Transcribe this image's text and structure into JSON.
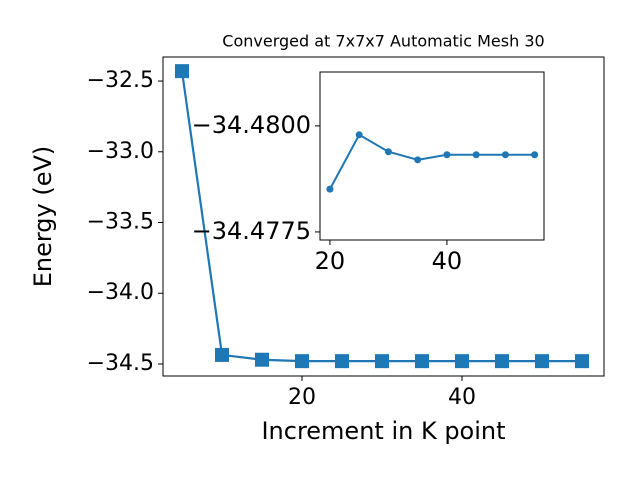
{
  "chart_data": [
    {
      "type": "line",
      "title": "Converged at 7x7x7 Automatic Mesh 30",
      "xlabel": "Increment in K point",
      "ylabel": "Energy (eV)",
      "x": [
        5,
        10,
        15,
        20,
        25,
        30,
        35,
        40,
        45,
        50,
        55
      ],
      "series": [
        {
          "color": "#1f77b4",
          "marker": "square",
          "values": [
            -32.43,
            -34.436,
            -34.47,
            -34.48,
            -34.48,
            -34.48,
            -34.48,
            -34.48,
            -34.48,
            -34.48,
            -34.48
          ]
        }
      ],
      "xlim": [
        2.625,
        57.75
      ],
      "ylim": [
        -34.585,
        -32.33
      ],
      "xticks": [
        20,
        40
      ],
      "yticks": [
        {
          "value": -32.5,
          "label": "−32.5"
        },
        {
          "value": -33.0,
          "label": "−33.0"
        },
        {
          "value": -33.5,
          "label": "−33.5"
        },
        {
          "value": -34.0,
          "label": "−34.0"
        },
        {
          "value": -34.5,
          "label": "−34.5"
        }
      ]
    },
    {
      "type": "line",
      "x": [
        20,
        25,
        30,
        35,
        40,
        45,
        50,
        55
      ],
      "series": [
        {
          "color": "#1f77b4",
          "marker": "circle",
          "values": [
            -34.47851,
            -34.47979,
            -34.47939,
            -34.4792,
            -34.47932,
            -34.47932,
            -34.47932,
            -34.47932
          ]
        }
      ],
      "xlim": [
        18.3,
        56.6
      ],
      "ylim": [
        -34.47731,
        -34.48127
      ],
      "xticks": [
        20,
        40
      ],
      "yticks": [
        {
          "value": -34.48,
          "label": "−34.4800"
        },
        {
          "value": -34.4775,
          "label": "−34.4775"
        }
      ]
    }
  ]
}
